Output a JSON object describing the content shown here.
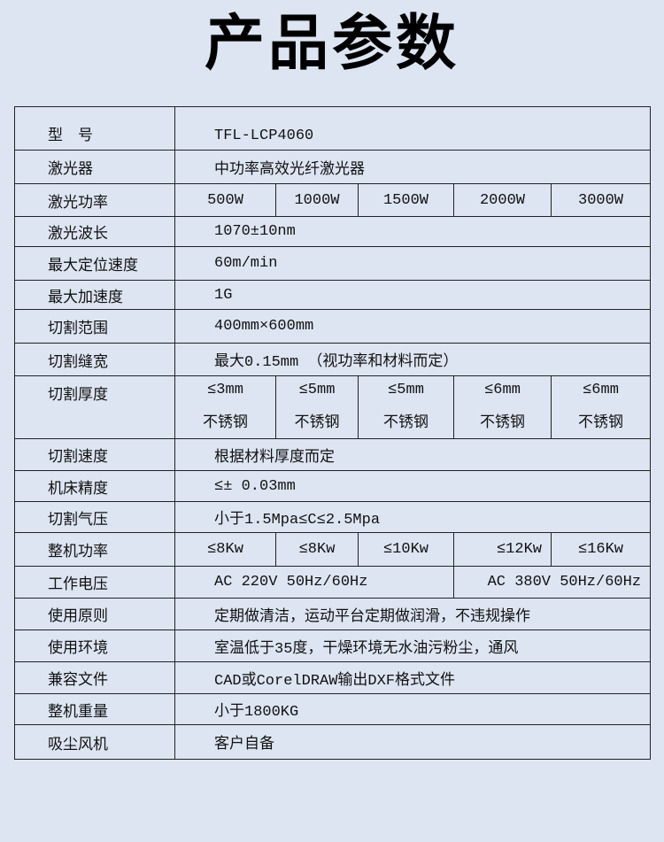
{
  "title": "产品参数",
  "rows": [
    {
      "label": "型　号",
      "value": "TFL-LCP4060"
    },
    {
      "label": "激光器",
      "value": "中功率高效光纤激光器"
    },
    {
      "label": "激光功率",
      "values": [
        "500W",
        "1000W",
        "1500W",
        "2000W",
        "3000W"
      ]
    },
    {
      "label": "激光波长",
      "value": "1070±10nm"
    },
    {
      "label": "最大定位速度",
      "value": "60m/min"
    },
    {
      "label": "最大加速度",
      "value": "1G"
    },
    {
      "label": "切割范围",
      "value": "400mm×600mm"
    },
    {
      "label": "切割缝宽",
      "value": "最大0.15mm （视功率和材料而定）"
    },
    {
      "label": "切割厚度",
      "values": [
        {
          "thickness": "≤3mm",
          "material": "不锈钢"
        },
        {
          "thickness": "≤5mm",
          "material": "不锈钢"
        },
        {
          "thickness": "≤5mm",
          "material": "不锈钢"
        },
        {
          "thickness": "≤6mm",
          "material": "不锈钢"
        },
        {
          "thickness": "≤6mm",
          "material": "不锈钢"
        }
      ]
    },
    {
      "label": "切割速度",
      "value": "根据材料厚度而定"
    },
    {
      "label": "机床精度",
      "value": "≤± 0.03mm"
    },
    {
      "label": "切割气压",
      "value": "小于1.5Mpa≤C≤2.5Mpa"
    },
    {
      "label": "整机功率",
      "values": [
        "≤8Kw",
        "≤8Kw",
        "≤10Kw",
        "≤12Kw",
        "≤16Kw"
      ]
    },
    {
      "label": "工作电压",
      "voltages": [
        "AC 220V 50Hz/60Hz",
        "AC 380V 50Hz/60Hz"
      ]
    },
    {
      "label": "使用原则",
      "value": "定期做清洁，运动平台定期做润滑，不违规操作"
    },
    {
      "label": "使用环境",
      "value": "室温低于35度，干燥环境无水油污粉尘，通风"
    },
    {
      "label": "兼容文件",
      "value": "CAD或CorelDRAW输出DXF格式文件"
    },
    {
      "label": "整机重量",
      "value": "小于1800KG"
    },
    {
      "label": "吸尘风机",
      "value": "客户自备"
    }
  ]
}
